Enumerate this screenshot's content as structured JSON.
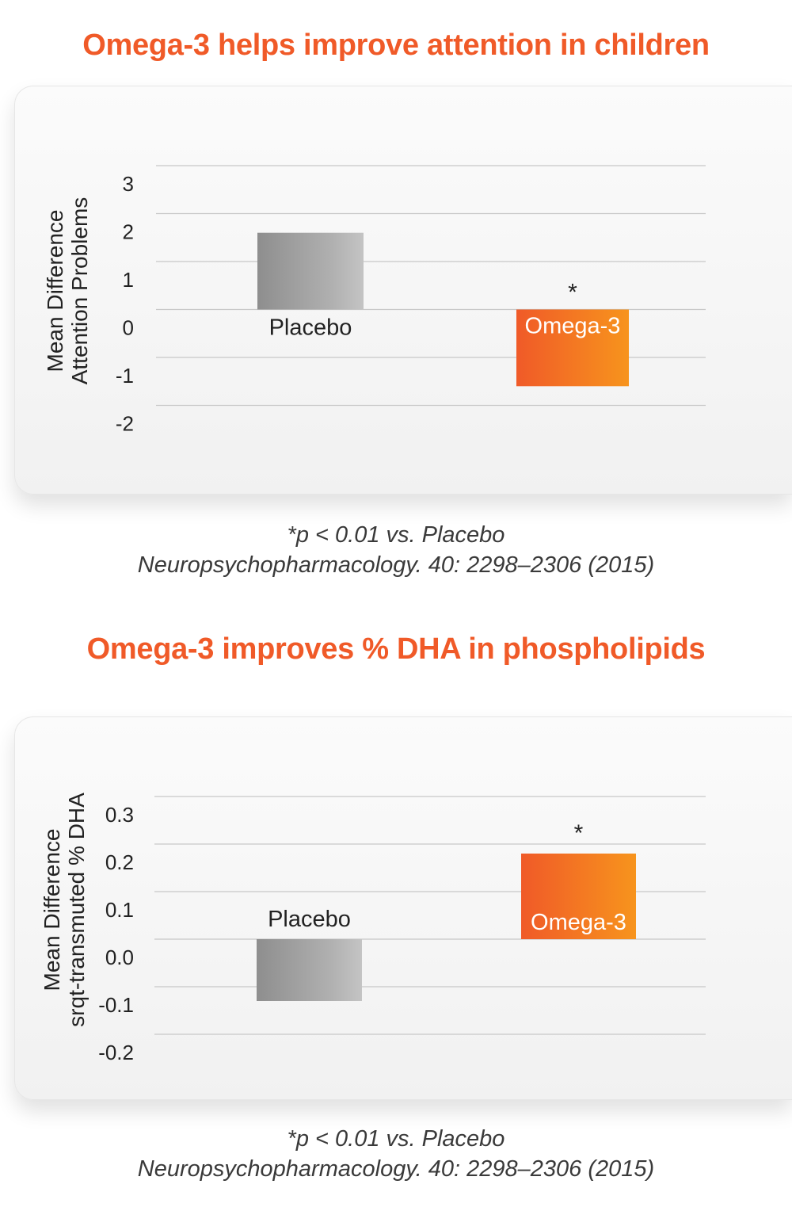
{
  "chart_data": [
    {
      "type": "bar",
      "title": "Omega-3 helps improve attention in children",
      "ylabel_lines": [
        "Mean Difference",
        "Attention Problems"
      ],
      "categories": [
        "Placebo",
        "Omega-3"
      ],
      "values": [
        1.6,
        -1.6
      ],
      "yticks": [
        3,
        2,
        1,
        0,
        -1,
        -2
      ],
      "ylim": [
        -2,
        3
      ],
      "grid": true,
      "annotations": [
        {
          "category": "Omega-3",
          "text": "*"
        }
      ],
      "footnote": "*p < 0.01 vs. Placebo",
      "citation": "Neuropsychopharmacology. 40: 2298–2306 (2015)"
    },
    {
      "type": "bar",
      "title": "Omega-3 improves % DHA in phospholipids",
      "ylabel_lines": [
        "Mean Difference",
        "srqt-transmuted % DHA"
      ],
      "categories": [
        "Placebo",
        "Omega-3"
      ],
      "values": [
        -0.13,
        0.18
      ],
      "yticks": [
        "0.3",
        "0.2",
        "0.1",
        "0.0",
        "-0.1",
        "-0.2"
      ],
      "ylim": [
        -0.2,
        0.3
      ],
      "grid": true,
      "annotations": [
        {
          "category": "Omega-3",
          "text": "*"
        }
      ],
      "footnote": "*p < 0.01 vs. Placebo",
      "citation": "Neuropsychopharmacology. 40: 2298–2306 (2015)"
    }
  ],
  "colors": {
    "title": "#f05a28",
    "placebo_dark": "#8e8e8e",
    "placebo_light": "#c4c4c4",
    "omega_dark": "#f05a28",
    "omega_light": "#f7941d",
    "grid": "#c8c8c8",
    "text": "#222222"
  }
}
